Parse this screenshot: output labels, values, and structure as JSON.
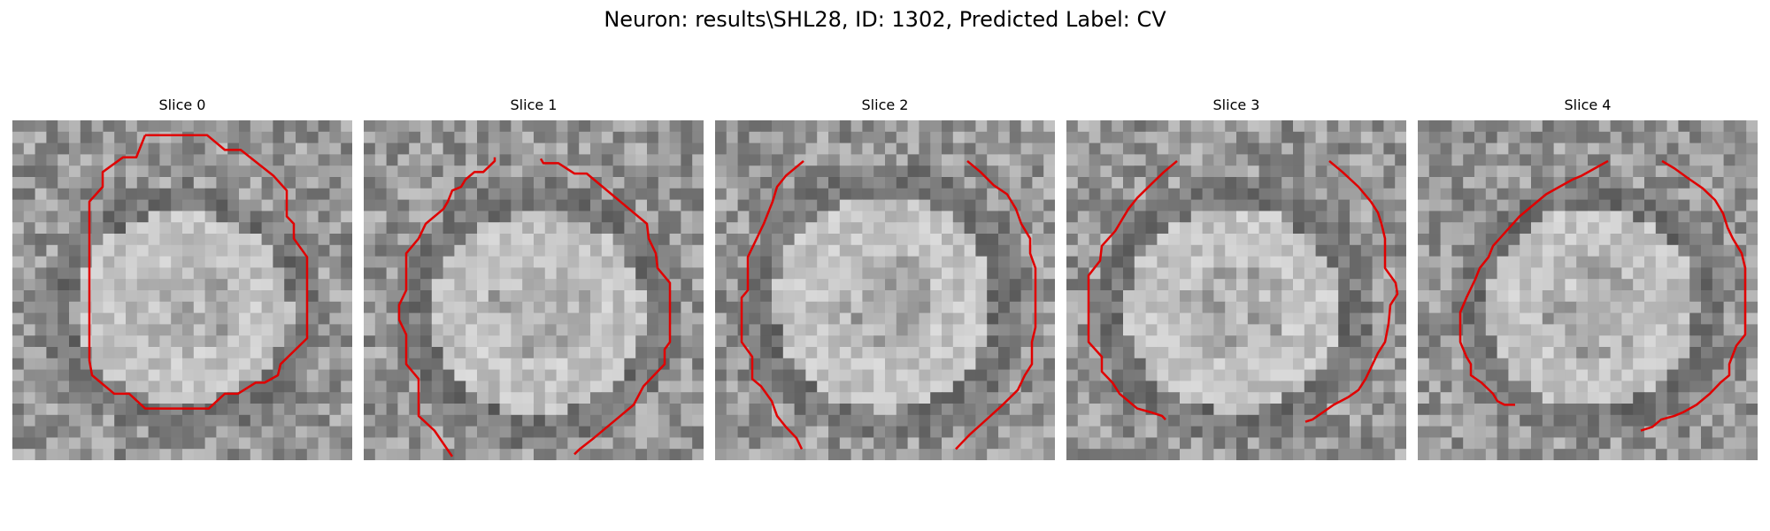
{
  "figure": {
    "title": "Neuron: results\\SHL28, ID: 1302, Predicted Label: CV",
    "outline_color": "#e00000"
  },
  "slices": [
    {
      "title": "Slice 0",
      "image": "grayscale EM micrograph patch with cell membrane ring",
      "outline": "red contour (closed)"
    },
    {
      "title": "Slice 1",
      "image": "grayscale EM micrograph patch with cell membrane ring",
      "outline": "red contour (open at bottom/top)"
    },
    {
      "title": "Slice 2",
      "image": "grayscale EM micrograph patch with cell membrane ring",
      "outline": "red contour (open at bottom/top)"
    },
    {
      "title": "Slice 3",
      "image": "grayscale EM micrograph patch with cell membrane ring",
      "outline": "red contour (open at bottom/top)"
    },
    {
      "title": "Slice 4",
      "image": "grayscale EM micrograph patch with cell membrane ring",
      "outline": "red contour (open at bottom/top)"
    }
  ]
}
